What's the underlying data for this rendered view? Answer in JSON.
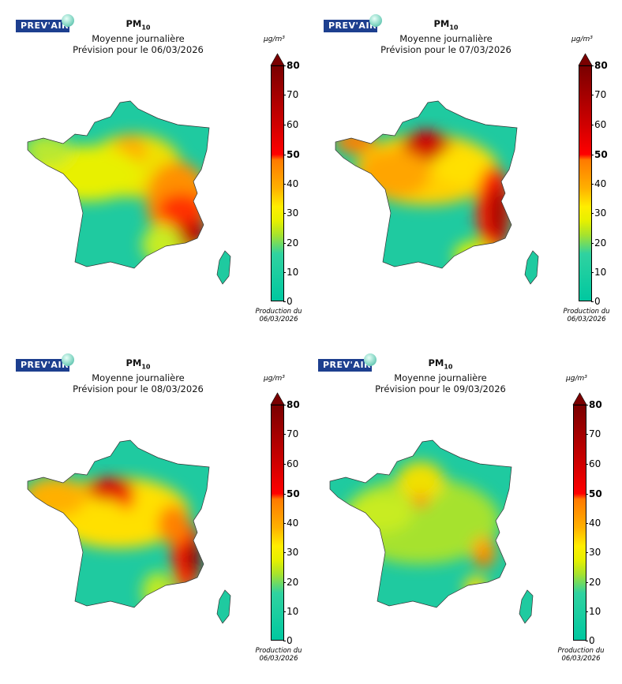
{
  "logo_text": "PREV'AIR",
  "colorbar": {
    "unit": "µg/m³",
    "ticks": [
      "80",
      "70",
      "60",
      "50",
      "40",
      "30",
      "20",
      "10",
      "0"
    ],
    "bold_ticks": [
      "80",
      "50"
    ],
    "colors": [
      "#00c8a0",
      "#30d2a0",
      "#a6e22e",
      "#e6f000",
      "#ffee00",
      "#ffb000",
      "#ff7a00",
      "#ff0000",
      "#d00000",
      "#7a0000"
    ]
  },
  "panels": [
    {
      "title": "PM",
      "sub": "10",
      "line2": "Moyenne journalière",
      "line3": "Prévision pour le 06/03/2026",
      "prod1": "Production du",
      "prod2": "06/03/2026"
    },
    {
      "title": "PM",
      "sub": "10",
      "line2": "Moyenne journalière",
      "line3": "Prévision pour le 07/03/2026",
      "prod1": "Production du",
      "prod2": "06/03/2026"
    },
    {
      "title": "PM",
      "sub": "10",
      "line2": "Moyenne journalière",
      "line3": "Prévision pour le 08/03/2026",
      "prod1": "Production du",
      "prod2": "06/03/2026"
    },
    {
      "title": "PM",
      "sub": "10",
      "line2": "Moyenne journalière",
      "line3": "Prévision pour le 09/03/2026",
      "prod1": "Production du",
      "prod2": "06/03/2026"
    }
  ]
}
